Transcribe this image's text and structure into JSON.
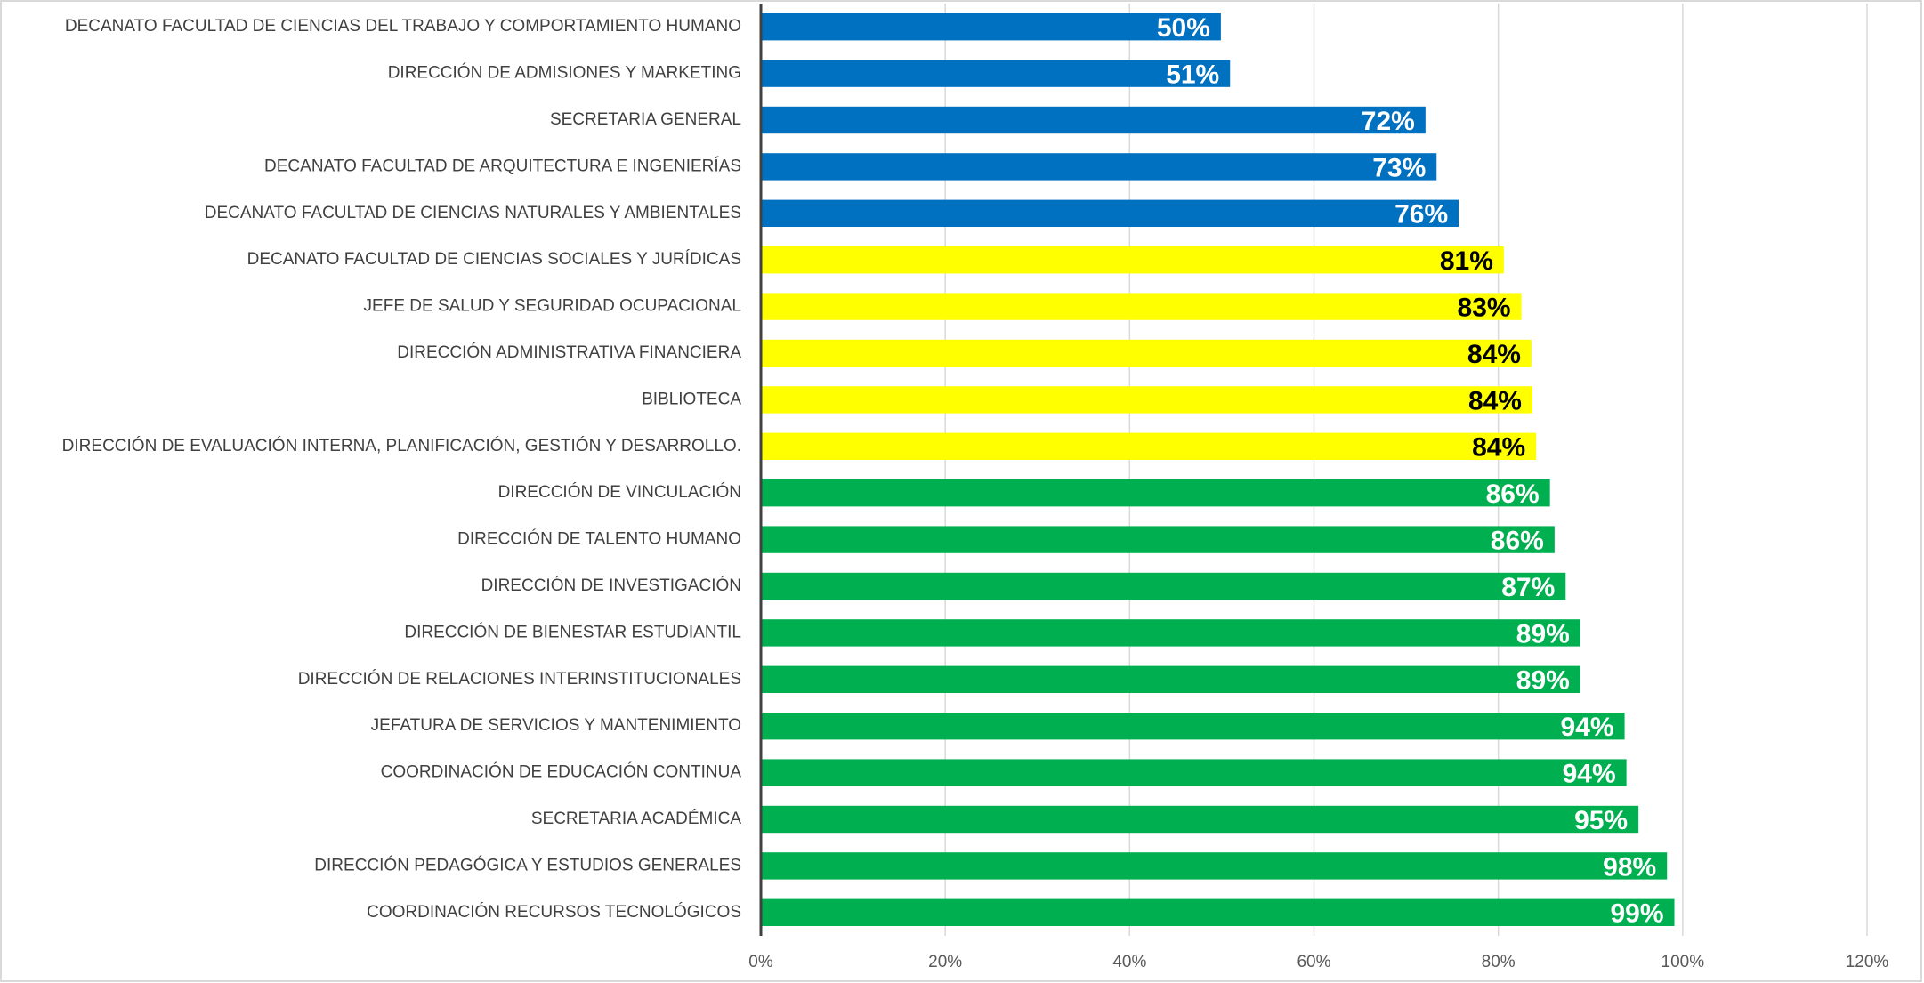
{
  "chart_data": {
    "type": "hbar",
    "categories": [
      "DECANATO FACULTAD DE CIENCIAS DEL TRABAJO Y COMPORTAMIENTO HUMANO",
      "DIRECCIÓN DE ADMISIONES Y MARKETING",
      "SECRETARIA GENERAL",
      "DECANATO FACULTAD DE ARQUITECTURA E INGENIERÍAS",
      "DECANATO FACULTAD DE CIENCIAS NATURALES Y AMBIENTALES",
      "DECANATO FACULTAD DE CIENCIAS SOCIALES Y JURÍDICAS",
      "JEFE DE SALUD Y SEGURIDAD OCUPACIONAL",
      "DIRECCIÓN ADMINISTRATIVA FINANCIERA",
      "BIBLIOTECA",
      "DIRECCIÓN DE EVALUACIÓN INTERNA, PLANIFICACIÓN, GESTIÓN Y DESARROLLO.",
      "DIRECCIÓN DE VINCULACIÓN",
      "DIRECCIÓN DE TALENTO HUMANO",
      "DIRECCIÓN DE INVESTIGACIÓN",
      "DIRECCIÓN DE BIENESTAR ESTUDIANTIL",
      "DIRECCIÓN DE RELACIONES INTERINSTITUCIONALES",
      "JEFATURA DE SERVICIOS Y MANTENIMIENTO",
      "COORDINACIÓN DE EDUCACIÓN CONTINUA",
      "SECRETARIA ACADÉMICA",
      "DIRECCIÓN PEDAGÓGICA Y ESTUDIOS GENERALES",
      "COORDINACIÓN RECURSOS TECNOLÓGICOS"
    ],
    "values": [
      49.9,
      50.9,
      72.1,
      73.3,
      75.7,
      80.6,
      82.5,
      83.6,
      83.7,
      84.1,
      85.6,
      86.1,
      87.3,
      88.9,
      88.9,
      93.7,
      93.9,
      95.2,
      98.3,
      99.1
    ],
    "value_labels": [
      "50%",
      "51%",
      "72%",
      "73%",
      "76%",
      "81%",
      "83%",
      "84%",
      "84%",
      "84%",
      "86%",
      "86%",
      "87%",
      "89%",
      "89%",
      "94%",
      "94%",
      "95%",
      "98%",
      "99%"
    ],
    "colors": [
      "#0070c0",
      "#0070c0",
      "#0070c0",
      "#0070c0",
      "#0070c0",
      "#ffff00",
      "#ffff00",
      "#ffff00",
      "#ffff00",
      "#ffff00",
      "#00b050",
      "#00b050",
      "#00b050",
      "#00b050",
      "#00b050",
      "#00b050",
      "#00b050",
      "#00b050",
      "#00b050",
      "#00b050"
    ],
    "xlim": [
      0,
      120
    ],
    "xticks": [
      {
        "value": 0,
        "label": "0%"
      },
      {
        "value": 20,
        "label": "20%"
      },
      {
        "value": 40,
        "label": "40%"
      },
      {
        "value": 60,
        "label": "60%"
      },
      {
        "value": 80,
        "label": "80%"
      },
      {
        "value": 100,
        "label": "100%"
      },
      {
        "value": 120,
        "label": "120%"
      }
    ],
    "grid": true
  }
}
